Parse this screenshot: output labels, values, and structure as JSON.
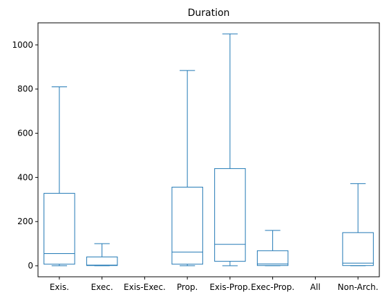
{
  "chart_data": {
    "type": "box",
    "title": "Duration",
    "xlabel": "",
    "ylabel": "",
    "ylim": [
      -50,
      1100
    ],
    "yticks": [
      0,
      200,
      400,
      600,
      800,
      1000
    ],
    "categories": [
      "Exis.",
      "Exec.",
      "Exis-Exec.",
      "Prop.",
      "Exis-Prop.",
      "Exec-Prop.",
      "All",
      "Non-Arch."
    ],
    "boxes": [
      {
        "category": "Exis.",
        "whisker_low": 0,
        "q1": 7,
        "median": 55,
        "q3": 328,
        "whisker_high": 810
      },
      {
        "category": "Exec.",
        "whisker_low": 0,
        "q1": 1,
        "median": 3,
        "q3": 40,
        "whisker_high": 100
      },
      {
        "category": "Exis-Exec.",
        "whisker_low": null,
        "q1": null,
        "median": null,
        "q3": null,
        "whisker_high": null
      },
      {
        "category": "Prop.",
        "whisker_low": 0,
        "q1": 7,
        "median": 62,
        "q3": 356,
        "whisker_high": 884
      },
      {
        "category": "Exis-Prop.",
        "whisker_low": 0,
        "q1": 20,
        "median": 97,
        "q3": 440,
        "whisker_high": 1050
      },
      {
        "category": "Exec-Prop.",
        "whisker_low": 0,
        "q1": 1,
        "median": 8,
        "q3": 68,
        "whisker_high": 160
      },
      {
        "category": "All",
        "whisker_low": null,
        "q1": null,
        "median": null,
        "q3": null,
        "whisker_high": null
      },
      {
        "category": "Non-Arch.",
        "whisker_low": 0,
        "q1": 1,
        "median": 12,
        "q3": 150,
        "whisker_high": 372
      }
    ],
    "grid": false,
    "colors": {
      "box": "#1f77b4",
      "axis": "#000000",
      "background": "#ffffff"
    }
  }
}
